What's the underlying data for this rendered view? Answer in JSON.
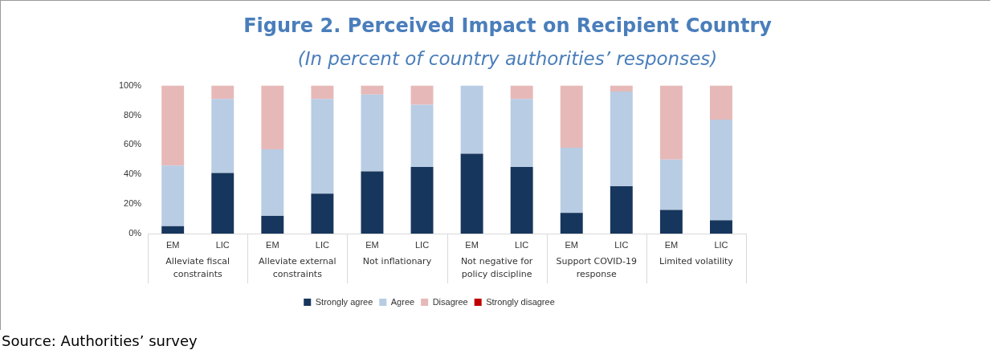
{
  "chart_data": {
    "type": "bar",
    "title": "Figure 2. Perceived Impact on Recipient Country",
    "subtitle": "(In percent of country authorities’ responses)",
    "categories": [
      "EM",
      "LIC",
      "EM",
      "LIC",
      "EM",
      "LIC",
      "EM",
      "LIC",
      "EM",
      "LIC",
      "EM",
      "LIC"
    ],
    "stacked": true,
    "series": [
      {
        "name": "Strongly agree",
        "color": "#17365d",
        "values": [
          5,
          41,
          12,
          27,
          42,
          45,
          54,
          45,
          14,
          32,
          16,
          9
        ]
      },
      {
        "name": "Agree",
        "color": "#b8cce4",
        "values": [
          41,
          50,
          45,
          64,
          52,
          42,
          46,
          46,
          44,
          64,
          34,
          68
        ]
      },
      {
        "name": "Disagree",
        "color": "#e6b9b8",
        "values": [
          54,
          9,
          43,
          9,
          6,
          13,
          0,
          9,
          42,
          4,
          50,
          23
        ]
      },
      {
        "name": "Strongly disagree",
        "color": "#c00000",
        "values": [
          0,
          0,
          0,
          0,
          0,
          0,
          0,
          0,
          0,
          0,
          0,
          0
        ]
      }
    ],
    "ylim": [
      0,
      100
    ],
    "yticks": [
      {
        "value": 0,
        "label": "0%"
      },
      {
        "value": 20,
        "label": "20%"
      },
      {
        "value": 40,
        "label": "40%"
      },
      {
        "value": 60,
        "label": "60%"
      },
      {
        "value": 80,
        "label": "80%"
      },
      {
        "value": 100,
        "label": "100%"
      }
    ],
    "legend": "bottom",
    "annotations": [
      "Alleviate fiscal constraints",
      "Alleviate external constraints",
      "Not inflationary",
      "Not negative for policy discipline",
      "Support COVID-19 response",
      "Limited volatility",
      "Source: Authorities’ survey"
    ]
  }
}
